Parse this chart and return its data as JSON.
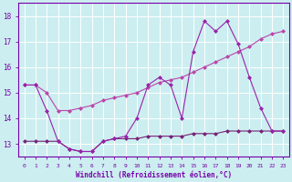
{
  "xlabel": "Windchill (Refroidissement éolien,°C)",
  "x_hours": [
    0,
    1,
    2,
    3,
    4,
    5,
    6,
    7,
    8,
    9,
    10,
    11,
    12,
    13,
    14,
    15,
    16,
    17,
    18,
    19,
    20,
    21,
    22,
    23
  ],
  "series1_y": [
    15.3,
    15.3,
    15.0,
    14.3,
    14.3,
    14.4,
    14.5,
    14.7,
    14.8,
    14.9,
    15.0,
    15.2,
    15.4,
    15.5,
    15.6,
    15.8,
    16.0,
    16.2,
    16.4,
    16.6,
    16.8,
    17.1,
    17.3,
    17.4
  ],
  "series2_y": [
    15.3,
    15.3,
    14.3,
    13.1,
    12.8,
    12.7,
    12.7,
    13.1,
    13.2,
    13.3,
    14.0,
    15.3,
    15.6,
    15.3,
    14.0,
    16.6,
    17.8,
    17.4,
    17.8,
    16.9,
    15.6,
    14.4,
    13.5,
    13.5
  ],
  "series3_y": [
    13.1,
    13.1,
    13.1,
    13.1,
    12.8,
    12.7,
    12.7,
    13.1,
    13.2,
    13.2,
    13.2,
    13.3,
    13.3,
    13.3,
    13.3,
    13.4,
    13.4,
    13.4,
    13.5,
    13.5,
    13.5,
    13.5,
    13.5,
    13.5
  ],
  "bg_color": "#cceef0",
  "line_color1": "#bb44aa",
  "line_color2": "#9922aa",
  "line_color3": "#772277",
  "grid_color": "#ffffff",
  "axis_color": "#7700aa",
  "ylim": [
    12.5,
    18.5
  ],
  "yticks": [
    13,
    14,
    15,
    16,
    17,
    18
  ],
  "marker": "D",
  "markersize": 2.5
}
